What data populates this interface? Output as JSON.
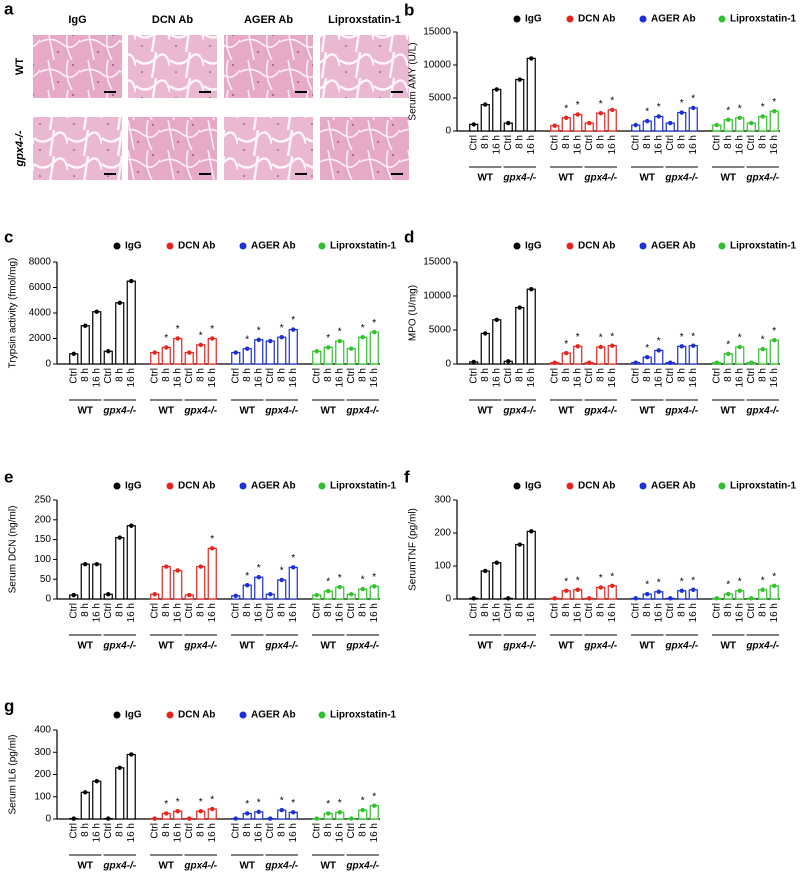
{
  "figure_a": {
    "label": "a",
    "columns": [
      "IgG",
      "DCN Ab",
      "AGER Ab",
      "Liproxstatin-1"
    ],
    "rows": [
      "WT",
      "gpx4-/-"
    ]
  },
  "chart_data": [
    {
      "type": "bar",
      "panel": "b",
      "ylabel": "Serum AMY (U/L)",
      "categories": [
        "Ctrl",
        "8 h",
        "16 h",
        "Ctrl",
        "8 h",
        "16 h"
      ],
      "groups": [
        "WT",
        "gpx4-/-"
      ],
      "significance_label": "*",
      "ylim": [
        0,
        15000
      ],
      "yticks": [
        0,
        5000,
        10000,
        15000
      ],
      "series": [
        {
          "name": "IgG",
          "color": "#000000",
          "values": [
            1000,
            4000,
            6300,
            1200,
            7800,
            11000
          ],
          "significant": [
            false,
            false,
            false,
            false,
            false,
            false
          ]
        },
        {
          "name": "DCN Ab",
          "color": "#e8231e",
          "values": [
            800,
            2000,
            2500,
            1200,
            2700,
            3200
          ],
          "significant": [
            false,
            true,
            true,
            false,
            true,
            true
          ]
        },
        {
          "name": "AGER Ab",
          "color": "#1a2fd6",
          "values": [
            900,
            1500,
            2200,
            1200,
            2800,
            3500
          ],
          "significant": [
            false,
            true,
            true,
            false,
            true,
            true
          ]
        },
        {
          "name": "Liproxstatin-1",
          "color": "#2fc22a",
          "values": [
            900,
            1700,
            2000,
            1200,
            2200,
            3000
          ],
          "significant": [
            false,
            true,
            true,
            false,
            true,
            true
          ]
        }
      ]
    },
    {
      "type": "bar",
      "panel": "c",
      "ylabel": "Trypsin activity (fmol/mg)",
      "categories": [
        "Ctrl",
        "8 h",
        "16 h",
        "Ctrl",
        "8 h",
        "16 h"
      ],
      "groups": [
        "WT",
        "gpx4-/-"
      ],
      "significance_label": "*",
      "ylim": [
        0,
        8000
      ],
      "yticks": [
        0,
        2000,
        4000,
        6000,
        8000
      ],
      "series": [
        {
          "name": "IgG",
          "color": "#000000",
          "values": [
            800,
            3000,
            4100,
            1000,
            4800,
            6500
          ],
          "significant": [
            false,
            false,
            false,
            false,
            false,
            false
          ]
        },
        {
          "name": "DCN Ab",
          "color": "#e8231e",
          "values": [
            900,
            1300,
            2000,
            900,
            1500,
            2000
          ],
          "significant": [
            false,
            true,
            true,
            false,
            true,
            true
          ]
        },
        {
          "name": "AGER Ab",
          "color": "#1a2fd6",
          "values": [
            900,
            1200,
            1900,
            1800,
            2100,
            2700
          ],
          "significant": [
            false,
            true,
            true,
            false,
            true,
            true
          ]
        },
        {
          "name": "Liproxstatin-1",
          "color": "#2fc22a",
          "values": [
            1000,
            1300,
            1800,
            1200,
            2100,
            2500
          ],
          "significant": [
            false,
            true,
            true,
            false,
            true,
            true
          ]
        }
      ]
    },
    {
      "type": "bar",
      "panel": "d",
      "ylabel": "MPO (U/mg)",
      "categories": [
        "Ctrl",
        "8 h",
        "16 h",
        "Ctrl",
        "8 h",
        "16 h"
      ],
      "groups": [
        "WT",
        "gpx4-/-"
      ],
      "significance_label": "*",
      "ylim": [
        0,
        15000
      ],
      "yticks": [
        0,
        5000,
        10000,
        15000
      ],
      "series": [
        {
          "name": "IgG",
          "color": "#000000",
          "values": [
            300,
            4500,
            6500,
            400,
            8300,
            11000
          ],
          "significant": [
            false,
            false,
            false,
            false,
            false,
            false
          ]
        },
        {
          "name": "DCN Ab",
          "color": "#e8231e",
          "values": [
            200,
            1600,
            2600,
            200,
            2500,
            2700
          ],
          "significant": [
            false,
            true,
            true,
            false,
            true,
            true
          ]
        },
        {
          "name": "AGER Ab",
          "color": "#1a2fd6",
          "values": [
            200,
            1000,
            2000,
            200,
            2600,
            2700
          ],
          "significant": [
            false,
            true,
            true,
            false,
            true,
            true
          ]
        },
        {
          "name": "Liproxstatin-1",
          "color": "#2fc22a",
          "values": [
            200,
            1500,
            2500,
            200,
            2200,
            3500
          ],
          "significant": [
            false,
            true,
            true,
            false,
            true,
            true
          ]
        }
      ]
    },
    {
      "type": "bar",
      "panel": "e",
      "ylabel": "Serum DCN (ng/ml)",
      "categories": [
        "Ctrl",
        "8 h",
        "16 h",
        "Ctrl",
        "8 h",
        "16 h"
      ],
      "groups": [
        "WT",
        "gpx4-/-"
      ],
      "significance_label": "*",
      "ylim": [
        0,
        250
      ],
      "yticks": [
        0,
        50,
        100,
        150,
        200,
        250
      ],
      "series": [
        {
          "name": "IgG",
          "color": "#000000",
          "values": [
            10,
            88,
            88,
            12,
            155,
            185
          ],
          "significant": [
            false,
            false,
            false,
            false,
            false,
            false
          ]
        },
        {
          "name": "DCN Ab",
          "color": "#e8231e",
          "values": [
            12,
            82,
            72,
            10,
            82,
            128
          ],
          "significant": [
            false,
            false,
            false,
            false,
            false,
            true
          ]
        },
        {
          "name": "AGER Ab",
          "color": "#1a2fd6",
          "values": [
            8,
            35,
            55,
            12,
            48,
            80
          ],
          "significant": [
            false,
            true,
            true,
            false,
            true,
            true
          ]
        },
        {
          "name": "Liproxstatin-1",
          "color": "#2fc22a",
          "values": [
            10,
            20,
            30,
            12,
            25,
            32
          ],
          "significant": [
            false,
            true,
            true,
            false,
            true,
            true
          ]
        }
      ]
    },
    {
      "type": "bar",
      "panel": "f",
      "ylabel": "SerumTNF (pg/ml)",
      "categories": [
        "Ctrl",
        "8 h",
        "16 h",
        "Ctrl",
        "8 h",
        "16 h"
      ],
      "groups": [
        "WT",
        "gpx4-/-"
      ],
      "significance_label": "*",
      "ylim": [
        0,
        300
      ],
      "yticks": [
        0,
        100,
        200,
        300
      ],
      "series": [
        {
          "name": "IgG",
          "color": "#000000",
          "values": [
            2,
            85,
            110,
            2,
            165,
            205
          ],
          "significant": [
            false,
            false,
            false,
            false,
            false,
            false
          ]
        },
        {
          "name": "DCN Ab",
          "color": "#e8231e",
          "values": [
            2,
            25,
            28,
            2,
            35,
            40
          ],
          "significant": [
            false,
            true,
            true,
            false,
            true,
            true
          ]
        },
        {
          "name": "AGER Ab",
          "color": "#1a2fd6",
          "values": [
            2,
            15,
            22,
            2,
            25,
            28
          ],
          "significant": [
            false,
            true,
            true,
            false,
            true,
            true
          ]
        },
        {
          "name": "Liproxstatin-1",
          "color": "#2fc22a",
          "values": [
            2,
            15,
            25,
            2,
            28,
            40
          ],
          "significant": [
            false,
            true,
            true,
            false,
            true,
            true
          ]
        }
      ]
    },
    {
      "type": "bar",
      "panel": "g",
      "ylabel": "Serum IL6 (pg/ml)",
      "categories": [
        "Ctrl",
        "8 h",
        "16 h",
        "Ctrl",
        "8 h",
        "16 h"
      ],
      "groups": [
        "WT",
        "gpx4-/-"
      ],
      "significance_label": "*",
      "ylim": [
        0,
        400
      ],
      "yticks": [
        0,
        100,
        200,
        300,
        400
      ],
      "series": [
        {
          "name": "IgG",
          "color": "#000000",
          "values": [
            2,
            120,
            170,
            2,
            230,
            290
          ],
          "significant": [
            false,
            false,
            false,
            false,
            false,
            false
          ]
        },
        {
          "name": "DCN Ab",
          "color": "#e8231e",
          "values": [
            2,
            25,
            35,
            2,
            35,
            45
          ],
          "significant": [
            false,
            true,
            true,
            false,
            true,
            true
          ]
        },
        {
          "name": "AGER Ab",
          "color": "#1a2fd6",
          "values": [
            2,
            25,
            32,
            2,
            40,
            30
          ],
          "significant": [
            false,
            true,
            true,
            false,
            true,
            true
          ]
        },
        {
          "name": "Liproxstatin-1",
          "color": "#2fc22a",
          "values": [
            2,
            25,
            30,
            2,
            40,
            60
          ],
          "significant": [
            false,
            true,
            true,
            false,
            true,
            true
          ]
        }
      ]
    }
  ]
}
